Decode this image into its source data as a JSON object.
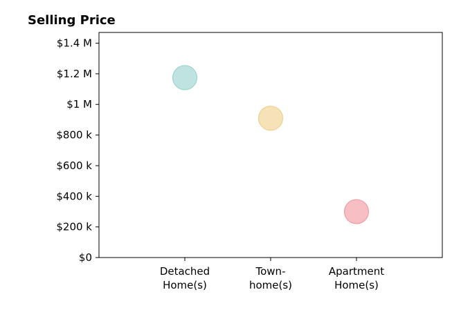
{
  "chart_data": {
    "type": "scatter",
    "title": "Selling Price",
    "xlabel": "",
    "ylabel": "",
    "categories": [
      [
        "Detached",
        "Home(s)"
      ],
      [
        "Town-",
        "home(s)"
      ],
      [
        "Apartment",
        "Home(s)"
      ]
    ],
    "values": [
      1175000,
      910000,
      300000
    ],
    "point_colors": [
      "#a8dad5",
      "#f1d89d",
      "#f4a9b0"
    ],
    "point_edge_colors": [
      "#8fcfc8",
      "#ebcc85",
      "#f0939c"
    ],
    "y_ticks": [
      0,
      200000,
      400000,
      600000,
      800000,
      1000000,
      1200000,
      1400000
    ],
    "y_tick_labels": [
      "$0",
      "$200 k",
      "$400 k",
      "$600 k",
      "$800 k",
      "$1 M",
      "$1.2 M",
      "$1.4 M"
    ],
    "ylim": [
      0,
      1470000
    ],
    "xlim": [
      0,
      4
    ],
    "grid": false,
    "legend": "none"
  }
}
